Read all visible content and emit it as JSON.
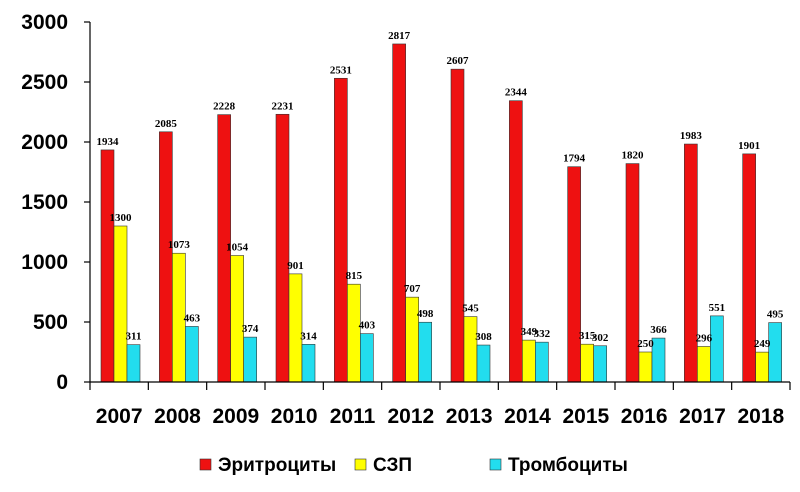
{
  "chart_data": {
    "type": "bar",
    "categories": [
      "2007",
      "2008",
      "2009",
      "2010",
      "2011",
      "2012",
      "2013",
      "2014",
      "2015",
      "2016",
      "2017",
      "2018"
    ],
    "series": [
      {
        "name": "Эритроциты",
        "color": "#ee1111",
        "values": [
          1934,
          2085,
          2228,
          2231,
          2531,
          2817,
          2607,
          2344,
          1794,
          1820,
          1983,
          1901
        ]
      },
      {
        "name": "СЗП",
        "color": "#ffff00",
        "values": [
          1300,
          1073,
          1054,
          901,
          815,
          707,
          545,
          349,
          315,
          250,
          296,
          249
        ]
      },
      {
        "name": "Тромбоциты",
        "color": "#22ddee",
        "values": [
          311,
          463,
          374,
          314,
          403,
          498,
          308,
          332,
          302,
          366,
          551,
          495
        ]
      }
    ],
    "ylim": [
      0,
      3000
    ],
    "yticks": [
      0,
      500,
      1000,
      1500,
      2000,
      2500,
      3000
    ],
    "legend_position": "bottom",
    "grid": false
  }
}
